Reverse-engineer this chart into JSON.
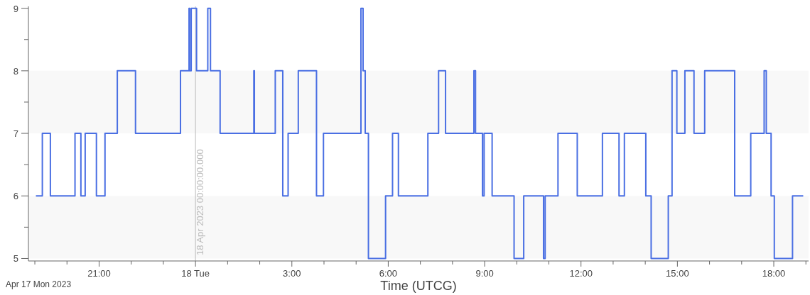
{
  "chart_data": {
    "type": "step",
    "xlabel": "Time (UTCG)",
    "annotations": [
      "Apr 17 Mon 2023"
    ],
    "x": [
      "2023-04-17T19:02",
      "2023-04-17T19:14",
      "2023-04-17T19:29",
      "2023-04-17T20:15",
      "2023-04-17T20:26",
      "2023-04-17T20:34",
      "2023-04-17T20:55",
      "2023-04-17T21:11",
      "2023-04-17T21:34",
      "2023-04-17T22:08",
      "2023-04-17T23:32",
      "2023-04-17T23:48",
      "2023-04-17T23:49",
      "2023-04-17T23:52",
      "2023-04-18T00:02",
      "2023-04-18T00:23",
      "2023-04-18T00:28",
      "2023-04-18T00:46",
      "2023-04-18T01:49",
      "2023-04-18T01:50",
      "2023-04-18T02:29",
      "2023-04-18T02:43",
      "2023-04-18T02:53",
      "2023-04-18T03:12",
      "2023-04-18T03:46",
      "2023-04-18T03:59",
      "2023-04-18T05:09",
      "2023-04-18T05:13",
      "2023-04-18T05:17",
      "2023-04-18T05:23",
      "2023-04-18T05:55",
      "2023-04-18T06:08",
      "2023-04-18T06:19",
      "2023-04-18T07:14",
      "2023-04-18T07:34",
      "2023-04-18T07:47",
      "2023-04-18T08:40",
      "2023-04-18T08:43",
      "2023-04-18T08:56",
      "2023-04-18T08:59",
      "2023-04-18T09:14",
      "2023-04-18T09:55",
      "2023-04-18T10:13",
      "2023-04-18T10:50",
      "2023-04-18T10:53",
      "2023-04-18T11:17",
      "2023-04-18T11:53",
      "2023-04-18T12:40",
      "2023-04-18T13:11",
      "2023-04-18T13:21",
      "2023-04-18T14:01",
      "2023-04-18T14:11",
      "2023-04-18T14:43",
      "2023-04-18T14:50",
      "2023-04-18T14:59",
      "2023-04-18T15:14",
      "2023-04-18T15:31",
      "2023-04-18T15:51",
      "2023-04-18T16:47",
      "2023-04-18T17:17",
      "2023-04-18T17:42",
      "2023-04-18T17:46",
      "2023-04-18T17:55",
      "2023-04-18T18:01",
      "2023-04-18T18:35",
      "2023-04-18T18:55"
    ],
    "series": [
      {
        "color": "#4a6fe3",
        "values": [
          6,
          7,
          6,
          7,
          6,
          7,
          6,
          7,
          8,
          7,
          8,
          9,
          8,
          9,
          8,
          9,
          8,
          7,
          8,
          7,
          8,
          6,
          7,
          8,
          6,
          7,
          9,
          8,
          7,
          5,
          6,
          7,
          6,
          7,
          8,
          7,
          8,
          7,
          6,
          7,
          6,
          5,
          6,
          5,
          6,
          7,
          6,
          7,
          6,
          7,
          6,
          5,
          6,
          8,
          7,
          8,
          7,
          8,
          6,
          7,
          8,
          7,
          6,
          5,
          6,
          6
        ]
      }
    ],
    "xlim": [
      "2023-04-17T18:48",
      "2023-04-18T19:05"
    ],
    "xticks": [
      {
        "value": "2023-04-17T19:00",
        "label": null
      },
      {
        "value": "2023-04-17T20:00",
        "label": null
      },
      {
        "value": "2023-04-17T21:00",
        "label": "21:00"
      },
      {
        "value": "2023-04-17T22:00",
        "label": null
      },
      {
        "value": "2023-04-17T23:00",
        "label": null
      },
      {
        "value": "2023-04-18T00:00",
        "label": "18 Tue"
      },
      {
        "value": "2023-04-18T01:00",
        "label": null
      },
      {
        "value": "2023-04-18T02:00",
        "label": null
      },
      {
        "value": "2023-04-18T03:00",
        "label": "3:00"
      },
      {
        "value": "2023-04-18T04:00",
        "label": null
      },
      {
        "value": "2023-04-18T05:00",
        "label": null
      },
      {
        "value": "2023-04-18T06:00",
        "label": "6:00"
      },
      {
        "value": "2023-04-18T07:00",
        "label": null
      },
      {
        "value": "2023-04-18T08:00",
        "label": null
      },
      {
        "value": "2023-04-18T09:00",
        "label": "9:00"
      },
      {
        "value": "2023-04-18T10:00",
        "label": null
      },
      {
        "value": "2023-04-18T11:00",
        "label": null
      },
      {
        "value": "2023-04-18T12:00",
        "label": "12:00"
      },
      {
        "value": "2023-04-18T13:00",
        "label": null
      },
      {
        "value": "2023-04-18T14:00",
        "label": null
      },
      {
        "value": "2023-04-18T15:00",
        "label": "15:00"
      },
      {
        "value": "2023-04-18T16:00",
        "label": null
      },
      {
        "value": "2023-04-18T17:00",
        "label": null
      },
      {
        "value": "2023-04-18T18:00",
        "label": "18:00"
      },
      {
        "value": "2023-04-18T19:00",
        "label": null
      }
    ],
    "ylim": [
      4.96,
      9.03
    ],
    "yticks": [
      5,
      {
        "value": 5.5,
        "label": null
      },
      6,
      {
        "value": 6.5,
        "label": null
      },
      7,
      {
        "value": 7.5,
        "label": null
      },
      8,
      {
        "value": 8.5,
        "label": null
      },
      9
    ],
    "bands": [
      {
        "axis": "y",
        "from": 5,
        "to": 6,
        "color": "#f8f8f8"
      },
      {
        "axis": "y",
        "from": 7,
        "to": 8,
        "color": "#f8f8f8"
      }
    ],
    "ref_lines": [
      {
        "axis": "x",
        "value": "2023-04-18T00:00",
        "label": "18 Apr 2023 00:00:00.000",
        "color": "#bbbbbb"
      }
    ],
    "line_style": "solid",
    "marker": "none",
    "legend": false,
    "grid": false
  }
}
